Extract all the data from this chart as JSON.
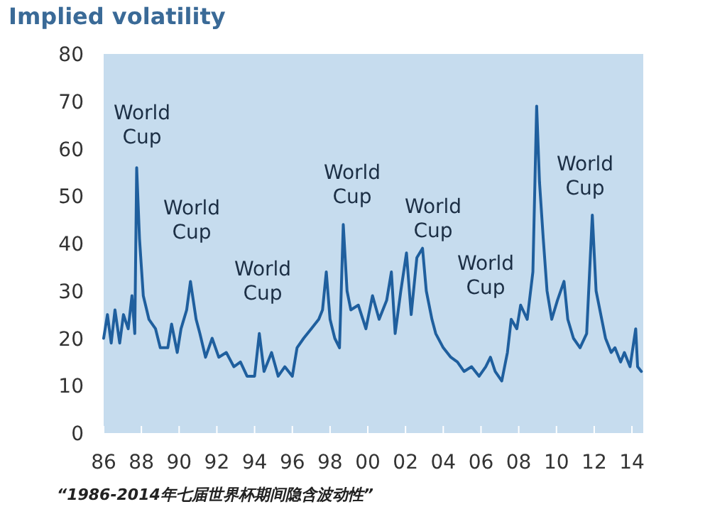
{
  "chart_data": {
    "type": "line",
    "title": "Implied volatility",
    "x": [
      1986.0,
      1986.2,
      1986.4,
      1986.6,
      1986.85,
      1987.05,
      1987.3,
      1987.5,
      1987.65,
      1987.75,
      1987.9,
      1988.1,
      1988.4,
      1988.75,
      1989.0,
      1989.4,
      1989.6,
      1989.9,
      1990.1,
      1990.4,
      1990.6,
      1990.9,
      1991.1,
      1991.4,
      1991.75,
      1992.1,
      1992.5,
      1992.9,
      1993.25,
      1993.6,
      1994.0,
      1994.25,
      1994.5,
      1994.9,
      1995.25,
      1995.6,
      1996.0,
      1996.25,
      1996.6,
      1997.0,
      1997.4,
      1997.6,
      1997.8,
      1998.0,
      1998.25,
      1998.5,
      1998.7,
      1998.9,
      1999.1,
      1999.5,
      1999.9,
      2000.25,
      2000.6,
      2001.0,
      2001.25,
      2001.45,
      2001.75,
      2002.05,
      2002.3,
      2002.6,
      2002.9,
      2003.1,
      2003.4,
      2003.6,
      2004.0,
      2004.4,
      2004.75,
      2005.1,
      2005.5,
      2005.9,
      2006.25,
      2006.5,
      2006.75,
      2007.1,
      2007.4,
      2007.6,
      2007.9,
      2008.1,
      2008.45,
      2008.75,
      2008.95,
      2009.1,
      2009.3,
      2009.5,
      2009.75,
      2010.05,
      2010.4,
      2010.6,
      2010.9,
      2011.25,
      2011.6,
      2011.9,
      2012.1,
      2012.4,
      2012.6,
      2012.9,
      2013.1,
      2013.4,
      2013.6,
      2013.9,
      2014.2,
      2014.3,
      2014.5
    ],
    "series": [
      {
        "color": "#1f5f9e",
        "values": [
          20,
          25,
          19,
          26,
          19,
          25,
          22,
          29,
          21,
          56,
          41,
          29,
          24,
          22,
          18,
          18,
          23,
          17,
          22,
          26,
          32,
          24,
          21,
          16,
          20,
          16,
          17,
          14,
          15,
          12,
          12,
          21,
          13,
          17,
          12,
          14,
          12,
          18,
          20,
          22,
          24,
          26,
          34,
          24,
          20,
          18,
          44,
          30,
          26,
          27,
          22,
          29,
          24,
          28,
          34,
          21,
          30,
          38,
          25,
          37,
          39,
          30,
          24,
          21,
          18,
          16,
          15,
          13,
          14,
          12,
          14,
          16,
          13,
          11,
          17,
          24,
          22,
          27,
          24,
          34,
          69,
          53,
          41,
          30,
          24,
          28,
          32,
          24,
          20,
          18,
          21,
          46,
          30,
          24,
          20,
          17,
          18,
          15,
          17,
          14,
          22,
          14,
          13
        ]
      }
    ],
    "xlim": [
      1986,
      2014.6
    ],
    "xticks": [
      {
        "value": 1986,
        "label": "86"
      },
      {
        "value": 1988,
        "label": "88"
      },
      {
        "value": 1990,
        "label": "90"
      },
      {
        "value": 1992,
        "label": "92"
      },
      {
        "value": 1994,
        "label": "94"
      },
      {
        "value": 1996,
        "label": "96"
      },
      {
        "value": 1998,
        "label": "98"
      },
      {
        "value": 2000,
        "label": "00"
      },
      {
        "value": 2002,
        "label": "02"
      },
      {
        "value": 2004,
        "label": "04"
      },
      {
        "value": 2006,
        "label": "06"
      },
      {
        "value": 2008,
        "label": "08"
      },
      {
        "value": 2010,
        "label": "10"
      },
      {
        "value": 2012,
        "label": "12"
      },
      {
        "value": 2014,
        "label": "14"
      }
    ],
    "ylim": [
      0,
      80
    ],
    "yticks": [
      0,
      10,
      20,
      30,
      40,
      50,
      60,
      70,
      80
    ],
    "annotations": [
      "World Cup",
      "World Cup",
      "World Cup",
      "World Cup",
      "World Cup",
      "World Cup",
      "World Cup",
      "“1986-2014年七届世界杯期间隐含波动性”"
    ]
  }
}
